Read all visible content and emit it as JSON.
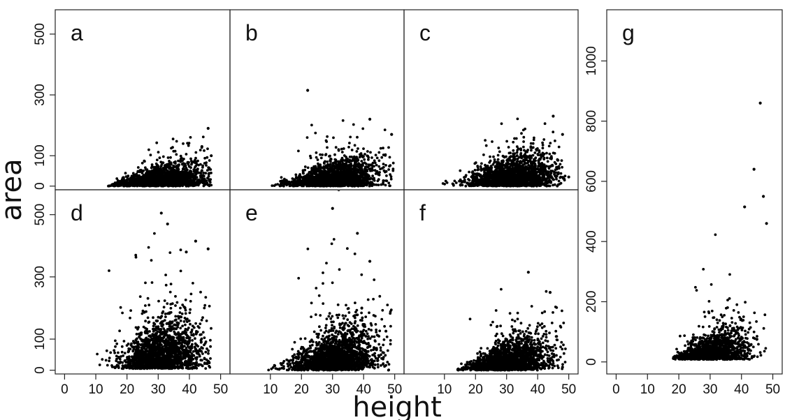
{
  "figure": {
    "ylabel": "area",
    "xlabel": "height"
  },
  "chart_data": [
    {
      "panel": "a",
      "type": "scatter",
      "xlim": [
        -3,
        53
      ],
      "ylim": [
        -12,
        580
      ],
      "xticks": [],
      "yticks": [
        0,
        100,
        300,
        500
      ],
      "x_range": [
        14,
        47
      ],
      "center": 31,
      "spread": 7,
      "y_low": 0,
      "y_bulk": 90,
      "y_peak": 185,
      "n": 1800,
      "outliers": [
        [
          44,
          130
        ],
        [
          47,
          100
        ],
        [
          46,
          190
        ]
      ]
    },
    {
      "panel": "b",
      "type": "scatter",
      "xlim": [
        -3,
        53
      ],
      "ylim": [
        -12,
        580
      ],
      "xticks": [],
      "yticks": [],
      "x_range": [
        10,
        50
      ],
      "center": 31,
      "spread": 7,
      "y_low": 0,
      "y_bulk": 110,
      "y_peak": 240,
      "n": 1800,
      "outliers": [
        [
          22,
          315
        ],
        [
          42,
          220
        ],
        [
          49,
          170
        ]
      ]
    },
    {
      "panel": "c",
      "type": "scatter",
      "xlim": [
        -3,
        53
      ],
      "ylim": [
        -12,
        580
      ],
      "xticks": [],
      "yticks": [],
      "x_range": [
        6,
        49
      ],
      "center": 32,
      "spread": 7,
      "y_low": 0,
      "y_bulk": 115,
      "y_peak": 235,
      "n": 1800,
      "outliers": [
        [
          45,
          230
        ],
        [
          48,
          170
        ],
        [
          50,
          30
        ]
      ]
    },
    {
      "panel": "d",
      "type": "scatter",
      "xlim": [
        -3,
        53
      ],
      "ylim": [
        -12,
        580
      ],
      "xticks": [
        0,
        10,
        20,
        30,
        40,
        50
      ],
      "yticks": [
        0,
        100,
        300,
        500
      ],
      "x_range": [
        6,
        47
      ],
      "center": 31,
      "spread": 6.5,
      "y_low": 5,
      "y_bulk": 170,
      "y_peak": 510,
      "n": 1800,
      "outliers": [
        [
          31,
          505
        ],
        [
          33,
          470
        ],
        [
          46,
          390
        ],
        [
          42,
          415
        ],
        [
          39,
          380
        ]
      ]
    },
    {
      "panel": "e",
      "type": "scatter",
      "xlim": [
        -3,
        53
      ],
      "ylim": [
        -12,
        580
      ],
      "xticks": [
        10,
        20,
        30,
        40,
        50
      ],
      "yticks": [],
      "x_range": [
        9,
        49
      ],
      "center": 31,
      "spread": 7,
      "y_low": 0,
      "y_bulk": 170,
      "y_peak": 440,
      "n": 1800,
      "outliers": [
        [
          30,
          520
        ],
        [
          32,
          580
        ],
        [
          38,
          440
        ],
        [
          42,
          350
        ]
      ]
    },
    {
      "panel": "f",
      "type": "scatter",
      "xlim": [
        -3,
        53
      ],
      "ylim": [
        -12,
        580
      ],
      "xticks": [
        10,
        20,
        30,
        40,
        50
      ],
      "yticks": [],
      "x_range": [
        14,
        49
      ],
      "center": 31,
      "spread": 6.5,
      "y_low": 0,
      "y_bulk": 130,
      "y_peak": 325,
      "n": 1800,
      "outliers": [
        [
          37,
          315
        ],
        [
          44,
          250
        ],
        [
          48,
          10
        ]
      ]
    },
    {
      "panel": "g",
      "type": "scatter",
      "xlim": [
        -3,
        53
      ],
      "ylim": [
        -40,
        1170
      ],
      "xticks": [
        0,
        10,
        20,
        30,
        40,
        50
      ],
      "yticks": [
        0,
        200,
        400,
        600,
        800,
        1000
      ],
      "x_range": [
        18,
        48
      ],
      "center": 31,
      "spread": 5.5,
      "y_low": 8,
      "y_bulk": 130,
      "y_peak": 520,
      "n": 1400,
      "outliers": [
        [
          46,
          860
        ],
        [
          44,
          640
        ],
        [
          47,
          550
        ],
        [
          41,
          515
        ],
        [
          48,
          460
        ]
      ]
    }
  ]
}
